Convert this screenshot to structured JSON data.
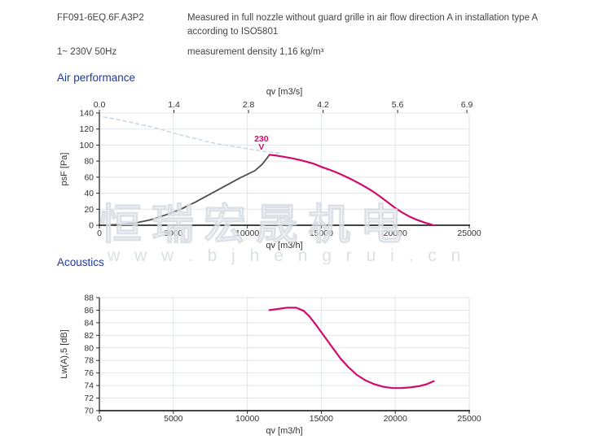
{
  "header": {
    "model": "FF091-6EQ.6F.A3P2",
    "power": "1~ 230V 50Hz",
    "measurement_note": "Measured in full nozzle without guard grille in air flow direction A in installation type A according to ISO5801",
    "density_note": "measurement density 1,16 kg/m³"
  },
  "watermark": {
    "line1": "恒瑞宏晟机电",
    "line2": "w w w . b j h e n g r u i . c n"
  },
  "colors": {
    "accent_blue": "#1c3aa0",
    "curve_pink": "#d00b6d",
    "curve_gray": "#4d4d4d",
    "curve_dashed": "#ccd9e2",
    "grid": "#dfe5ea",
    "axis": "#2a2a2a",
    "text": "#333333"
  },
  "chart_data": [
    {
      "id": "air-performance",
      "type": "line",
      "title": "Air performance",
      "x_axis_bottom": {
        "label": "qv [m3/h]",
        "range": [
          0,
          25000
        ],
        "ticks": [
          {
            "v": 0,
            "label": "0"
          },
          {
            "v": 5000,
            "label": "5000"
          },
          {
            "v": 10000,
            "label": "10000"
          },
          {
            "v": 15000,
            "label": "15000"
          },
          {
            "v": 20000,
            "label": "20000"
          },
          {
            "v": 25000,
            "label": "25000"
          }
        ]
      },
      "x_axis_top": {
        "label": "qv [m3/s]",
        "range": [
          0,
          6.9444
        ],
        "ticks": [
          {
            "v": 0.0,
            "label": "0.0"
          },
          {
            "v": 1.4,
            "label": "1.4"
          },
          {
            "v": 2.8,
            "label": "2.8"
          },
          {
            "v": 4.2,
            "label": "4.2"
          },
          {
            "v": 5.6,
            "label": "5.6"
          },
          {
            "v": 6.9,
            "label": "6.9"
          }
        ]
      },
      "y_axis": {
        "label": "psF [Pa]",
        "range": [
          0,
          140
        ],
        "ticks": [
          {
            "v": 0,
            "label": "0"
          },
          {
            "v": 20,
            "label": "20"
          },
          {
            "v": 40,
            "label": "40"
          },
          {
            "v": 60,
            "label": "60"
          },
          {
            "v": 80,
            "label": "80"
          },
          {
            "v": 100,
            "label": "100"
          },
          {
            "v": 120,
            "label": "120"
          },
          {
            "v": 140,
            "label": "140"
          }
        ]
      },
      "series": [
        {
          "name": "limit-curve-dashed",
          "color": "#ccd9e2",
          "width": 1.6,
          "dash": "4 4",
          "points": [
            [
              300,
              135
            ],
            [
              1500,
              131
            ],
            [
              2700,
              126
            ],
            [
              3900,
              121
            ],
            [
              5000,
              115
            ],
            [
              6300,
              109
            ],
            [
              7600,
              103
            ],
            [
              8800,
              99
            ],
            [
              10000,
              95.5
            ],
            [
              11200,
              92
            ],
            [
              12200,
              90
            ]
          ]
        },
        {
          "name": "fan-curve-rising",
          "color": "#4d4d4d",
          "width": 1.8,
          "points": [
            [
              200,
              0
            ],
            [
              1500,
              1
            ],
            [
              2500,
              3
            ],
            [
              3500,
              7
            ],
            [
              4500,
              13
            ],
            [
              5500,
              20
            ],
            [
              6500,
              29
            ],
            [
              7500,
              39
            ],
            [
              8500,
              49
            ],
            [
              9500,
              59
            ],
            [
              10500,
              68
            ],
            [
              11000,
              76
            ],
            [
              11300,
              83
            ],
            [
              11500,
              88
            ]
          ]
        },
        {
          "name": "curve-230v",
          "color": "#d00b6d",
          "width": 2.2,
          "points": [
            [
              11500,
              88
            ],
            [
              12000,
              86.8
            ],
            [
              12500,
              85.3
            ],
            [
              13000,
              83.6
            ],
            [
              13500,
              81.6
            ],
            [
              14000,
              79.3
            ],
            [
              14500,
              76.7
            ],
            [
              15000,
              72.8
            ],
            [
              15500,
              69.6
            ],
            [
              16000,
              66
            ],
            [
              16500,
              62
            ],
            [
              17000,
              57.6
            ],
            [
              17500,
              52.8
            ],
            [
              18000,
              47.6
            ],
            [
              18500,
              42
            ],
            [
              19000,
              35.5
            ],
            [
              19500,
              28.5
            ],
            [
              20000,
              21.5
            ],
            [
              20500,
              15.5
            ],
            [
              21000,
              10.5
            ],
            [
              21500,
              6.5
            ],
            [
              22000,
              3.2
            ],
            [
              22600,
              0
            ]
          ]
        }
      ],
      "annotations": [
        {
          "lines": [
            "230",
            "V"
          ],
          "x": 10950,
          "y": 104.5,
          "color": "#d00b6d"
        }
      ]
    },
    {
      "id": "acoustics",
      "type": "line",
      "title": "Acoustics",
      "x_axis_bottom": {
        "label": "qv [m3/h]",
        "range": [
          0,
          25000
        ],
        "ticks": [
          {
            "v": 0,
            "label": "0"
          },
          {
            "v": 5000,
            "label": "5000"
          },
          {
            "v": 10000,
            "label": "10000"
          },
          {
            "v": 15000,
            "label": "15000"
          },
          {
            "v": 20000,
            "label": "20000"
          },
          {
            "v": 25000,
            "label": "25000"
          }
        ]
      },
      "y_axis": {
        "label": "Lw(A),5 [dB]",
        "range": [
          70,
          88
        ],
        "ticks": [
          {
            "v": 70,
            "label": "70"
          },
          {
            "v": 72,
            "label": "72"
          },
          {
            "v": 74,
            "label": "74"
          },
          {
            "v": 76,
            "label": "76"
          },
          {
            "v": 78,
            "label": "78"
          },
          {
            "v": 80,
            "label": "80"
          },
          {
            "v": 82,
            "label": "82"
          },
          {
            "v": 84,
            "label": "84"
          },
          {
            "v": 86,
            "label": "86"
          },
          {
            "v": 88,
            "label": "88"
          }
        ]
      },
      "series": [
        {
          "name": "sound-power-curve",
          "color": "#d00b6d",
          "width": 2.2,
          "points": [
            [
              11500,
              86.0
            ],
            [
              12100,
              86.2
            ],
            [
              12700,
              86.4
            ],
            [
              13300,
              86.4
            ],
            [
              13800,
              85.9
            ],
            [
              14200,
              85.0
            ],
            [
              14600,
              83.8
            ],
            [
              15000,
              82.5
            ],
            [
              15400,
              81.2
            ],
            [
              15800,
              79.9
            ],
            [
              16300,
              78.3
            ],
            [
              16800,
              77.0
            ],
            [
              17400,
              75.7
            ],
            [
              18000,
              74.8
            ],
            [
              18600,
              74.2
            ],
            [
              19200,
              73.8
            ],
            [
              19800,
              73.6
            ],
            [
              20400,
              73.6
            ],
            [
              21000,
              73.7
            ],
            [
              21600,
              73.9
            ],
            [
              22100,
              74.2
            ],
            [
              22600,
              74.7
            ]
          ]
        }
      ],
      "annotations": []
    }
  ]
}
